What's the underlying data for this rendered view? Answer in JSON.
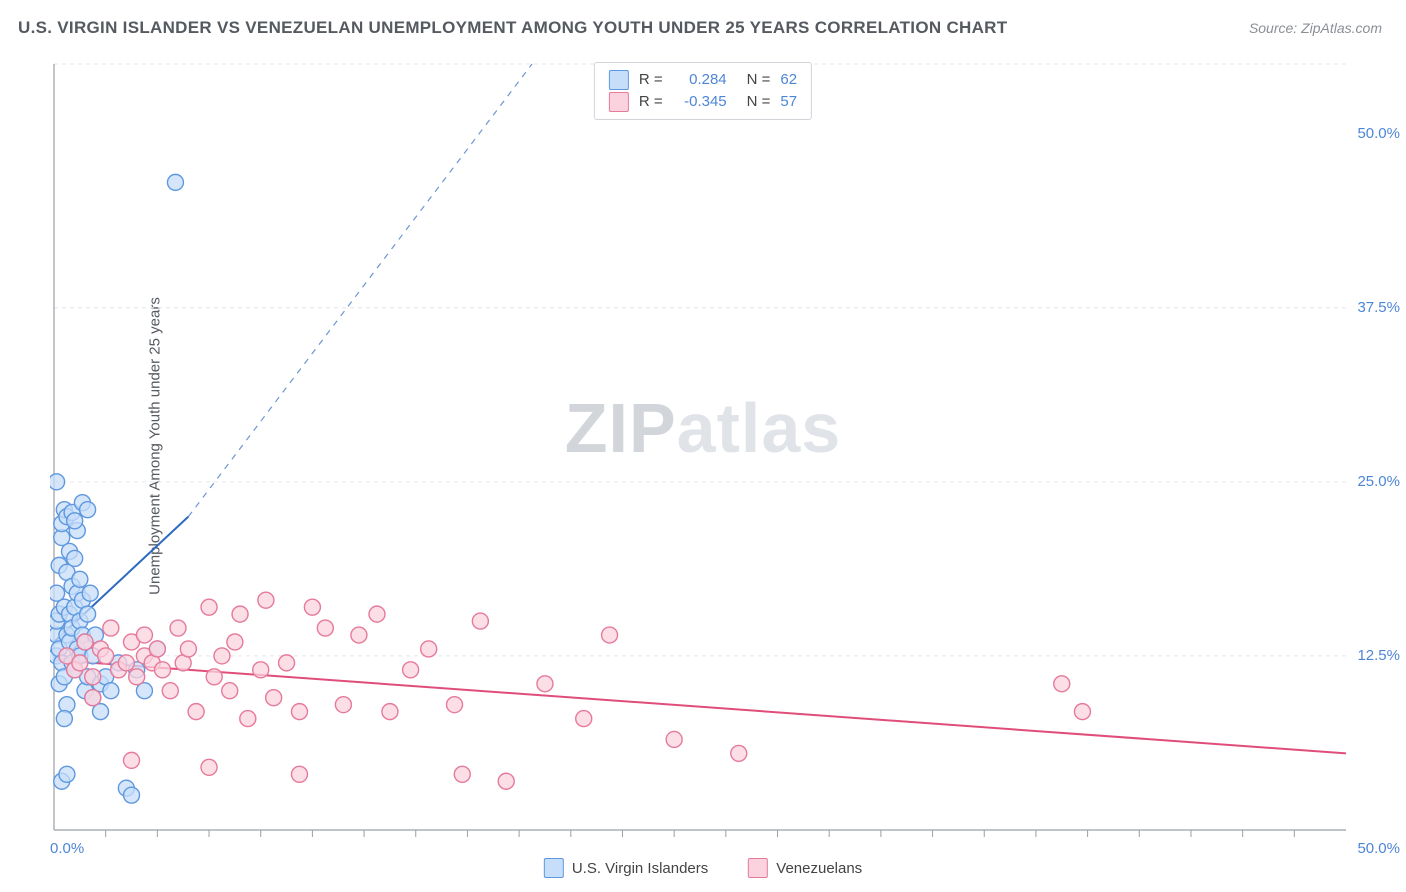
{
  "title": "U.S. VIRGIN ISLANDER VS VENEZUELAN UNEMPLOYMENT AMONG YOUTH UNDER 25 YEARS CORRELATION CHART",
  "source": "Source: ZipAtlas.com",
  "yaxis_label": "Unemployment Among Youth under 25 years",
  "watermark_a": "ZIP",
  "watermark_b": "atlas",
  "chart": {
    "type": "scatter",
    "background_color": "#ffffff",
    "grid_color": "#e3e6ea",
    "axis_color": "#9aa0a6",
    "tick_label_color": "#4e86d6",
    "marker_radius": 8,
    "marker_stroke_width": 1.4,
    "xlim": [
      0,
      50
    ],
    "ylim": [
      0,
      55
    ],
    "y_gridlines": [
      12.5,
      25.0,
      37.5,
      55.0
    ],
    "y_tick_labels": [
      {
        "v": 12.5,
        "label": "12.5%"
      },
      {
        "v": 25.0,
        "label": "25.0%"
      },
      {
        "v": 37.5,
        "label": "37.5%"
      },
      {
        "v": 50.0,
        "label": "50.0%"
      }
    ],
    "x_tick_labels": [
      {
        "v": 0,
        "label": "0.0%"
      },
      {
        "v": 50,
        "label": "50.0%"
      }
    ],
    "x_minor_ticks": [
      2,
      4,
      6,
      8,
      10,
      12,
      14,
      16,
      18,
      20,
      22,
      24,
      26,
      28,
      30,
      32,
      34,
      36,
      38,
      40,
      42,
      44,
      46,
      48
    ],
    "series": [
      {
        "name": "U.S. Virgin Islanders",
        "fill": "#c7defa",
        "stroke": "#5e98df",
        "opacity": 0.75,
        "trend": {
          "x1": 0,
          "y1": 13.5,
          "x2": 5.2,
          "y2": 22.5,
          "dash_to_x": 18.5,
          "dash_to_y": 55.0,
          "color": "#2e6ac2",
          "width": 2
        },
        "points": [
          [
            0.1,
            12.5
          ],
          [
            0.1,
            14.0
          ],
          [
            0.1,
            15.0
          ],
          [
            0.1,
            17.0
          ],
          [
            0.1,
            25.0
          ],
          [
            0.2,
            13.0
          ],
          [
            0.2,
            15.5
          ],
          [
            0.2,
            10.5
          ],
          [
            0.2,
            19.0
          ],
          [
            0.3,
            21.0
          ],
          [
            0.3,
            22.0
          ],
          [
            0.3,
            12.0
          ],
          [
            0.4,
            16.0
          ],
          [
            0.4,
            23.0
          ],
          [
            0.4,
            11.0
          ],
          [
            0.5,
            14.0
          ],
          [
            0.5,
            18.5
          ],
          [
            0.5,
            22.5
          ],
          [
            0.5,
            9.0
          ],
          [
            0.6,
            13.5
          ],
          [
            0.6,
            20.0
          ],
          [
            0.6,
            15.5
          ],
          [
            0.7,
            14.5
          ],
          [
            0.7,
            17.5
          ],
          [
            0.7,
            12.0
          ],
          [
            0.8,
            16.0
          ],
          [
            0.8,
            19.5
          ],
          [
            0.8,
            11.5
          ],
          [
            0.9,
            13.0
          ],
          [
            0.9,
            17.0
          ],
          [
            0.9,
            21.5
          ],
          [
            1.0,
            15.0
          ],
          [
            1.0,
            18.0
          ],
          [
            1.0,
            12.5
          ],
          [
            1.1,
            16.5
          ],
          [
            1.1,
            14.0
          ],
          [
            1.2,
            10.0
          ],
          [
            1.2,
            13.5
          ],
          [
            1.3,
            15.5
          ],
          [
            1.3,
            11.0
          ],
          [
            1.4,
            17.0
          ],
          [
            1.5,
            12.5
          ],
          [
            1.5,
            9.5
          ],
          [
            1.6,
            14.0
          ],
          [
            1.8,
            10.5
          ],
          [
            1.8,
            8.5
          ],
          [
            2.0,
            11.0
          ],
          [
            2.2,
            10.0
          ],
          [
            2.5,
            12.0
          ],
          [
            2.8,
            3.0
          ],
          [
            3.0,
            2.5
          ],
          [
            3.2,
            11.5
          ],
          [
            3.5,
            10.0
          ],
          [
            4.0,
            13.0
          ],
          [
            0.3,
            3.5
          ],
          [
            0.5,
            4.0
          ],
          [
            0.7,
            22.8
          ],
          [
            0.8,
            22.2
          ],
          [
            1.1,
            23.5
          ],
          [
            1.3,
            23.0
          ],
          [
            4.7,
            46.5
          ],
          [
            0.4,
            8.0
          ]
        ]
      },
      {
        "name": "Venezuelans",
        "fill": "#fbd3de",
        "stroke": "#e67a9b",
        "opacity": 0.75,
        "trend": {
          "x1": 0,
          "y1": 12.2,
          "x2": 50,
          "y2": 5.5,
          "color": "#e14d7b",
          "width": 2
        },
        "points": [
          [
            0.5,
            12.5
          ],
          [
            0.8,
            11.5
          ],
          [
            1.0,
            12.0
          ],
          [
            1.2,
            13.5
          ],
          [
            1.5,
            11.0
          ],
          [
            1.8,
            13.0
          ],
          [
            2.0,
            12.5
          ],
          [
            2.2,
            14.5
          ],
          [
            2.5,
            11.5
          ],
          [
            2.8,
            12.0
          ],
          [
            3.0,
            13.5
          ],
          [
            3.2,
            11.0
          ],
          [
            3.5,
            14.0
          ],
          [
            3.5,
            12.5
          ],
          [
            3.8,
            12.0
          ],
          [
            4.0,
            13.0
          ],
          [
            4.2,
            11.5
          ],
          [
            4.5,
            10.0
          ],
          [
            4.8,
            14.5
          ],
          [
            5.0,
            12.0
          ],
          [
            5.2,
            13.0
          ],
          [
            5.5,
            8.5
          ],
          [
            6.0,
            16.0
          ],
          [
            6.2,
            11.0
          ],
          [
            6.5,
            12.5
          ],
          [
            6.8,
            10.0
          ],
          [
            7.0,
            13.5
          ],
          [
            7.2,
            15.5
          ],
          [
            7.5,
            8.0
          ],
          [
            8.0,
            11.5
          ],
          [
            8.2,
            16.5
          ],
          [
            8.5,
            9.5
          ],
          [
            9.0,
            12.0
          ],
          [
            9.5,
            8.5
          ],
          [
            10.0,
            16.0
          ],
          [
            10.5,
            14.5
          ],
          [
            11.2,
            9.0
          ],
          [
            11.8,
            14.0
          ],
          [
            12.5,
            15.5
          ],
          [
            13.0,
            8.5
          ],
          [
            13.8,
            11.5
          ],
          [
            14.5,
            13.0
          ],
          [
            15.5,
            9.0
          ],
          [
            15.8,
            4.0
          ],
          [
            16.5,
            15.0
          ],
          [
            17.5,
            3.5
          ],
          [
            19.0,
            10.5
          ],
          [
            20.5,
            8.0
          ],
          [
            21.5,
            14.0
          ],
          [
            24.0,
            6.5
          ],
          [
            26.5,
            5.5
          ],
          [
            39.0,
            10.5
          ],
          [
            39.8,
            8.5
          ],
          [
            3.0,
            5.0
          ],
          [
            6.0,
            4.5
          ],
          [
            9.5,
            4.0
          ],
          [
            1.5,
            9.5
          ]
        ]
      }
    ]
  },
  "stats": {
    "rows": [
      {
        "swatch": "blue",
        "r_label": "R =",
        "r_value": "0.284",
        "n_label": "N =",
        "n_value": "62"
      },
      {
        "swatch": "pink",
        "r_label": "R =",
        "r_value": "-0.345",
        "n_label": "N =",
        "n_value": "57"
      }
    ]
  },
  "legend": {
    "items": [
      {
        "swatch": "blue",
        "label": "U.S. Virgin Islanders"
      },
      {
        "swatch": "pink",
        "label": "Venezuelans"
      }
    ]
  }
}
